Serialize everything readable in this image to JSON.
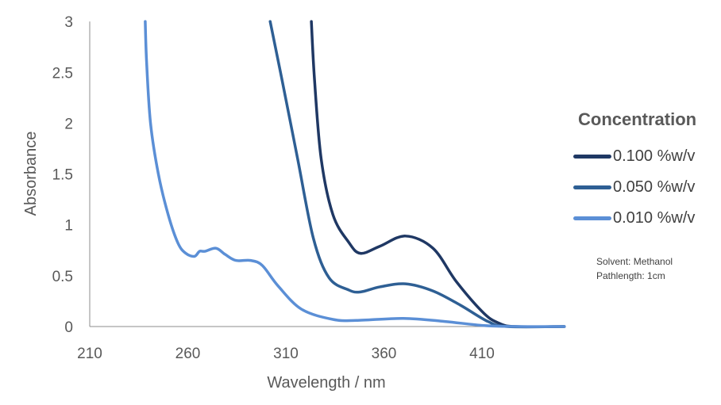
{
  "chart_data": {
    "type": "line",
    "title": "",
    "xlabel": "Wavelength / nm",
    "ylabel": "Absorbance",
    "xlim": [
      210,
      452
    ],
    "ylim": [
      0,
      3
    ],
    "xticks": [
      "210",
      "260",
      "310",
      "360",
      "410"
    ],
    "yticks": [
      "0",
      "0.5",
      "1",
      "1.5",
      "2",
      "2.5",
      "3"
    ],
    "grid": false,
    "legend": {
      "title": "Concentration",
      "placement": "right"
    },
    "annotations": [
      "Solvent: Methanol",
      "Pathlength: 1cm"
    ],
    "series": [
      {
        "name": "0.100 %w/v",
        "color": "#1f3864",
        "x": [
          323,
          324.6,
          328,
          334,
          342,
          348,
          358,
          371,
          385,
          397,
          411,
          419,
          427,
          452
        ],
        "y": [
          3.0,
          2.43,
          1.65,
          1.1,
          0.83,
          0.72,
          0.79,
          0.89,
          0.77,
          0.44,
          0.13,
          0.03,
          0.0,
          0.0
        ]
      },
      {
        "name": "0.050 %w/v",
        "color": "#2e5f94",
        "x": [
          302,
          308,
          316,
          324,
          332,
          342,
          348,
          358,
          371,
          385,
          399,
          413,
          423,
          452
        ],
        "y": [
          3.0,
          2.43,
          1.65,
          0.87,
          0.48,
          0.36,
          0.34,
          0.39,
          0.42,
          0.35,
          0.21,
          0.05,
          0.0,
          0.0
        ]
      },
      {
        "name": "0.010 %w/v",
        "color": "#5b8fd6",
        "x": [
          238.3,
          239,
          241,
          245,
          250,
          255,
          259,
          263.4,
          266,
          268.7,
          274.4,
          279,
          284.5,
          292,
          298,
          306,
          318,
          334,
          346,
          370,
          391,
          411,
          430,
          452
        ],
        "y": [
          3.0,
          2.6,
          2.0,
          1.5,
          1.1,
          0.82,
          0.72,
          0.69,
          0.74,
          0.74,
          0.77,
          0.71,
          0.65,
          0.65,
          0.6,
          0.4,
          0.17,
          0.07,
          0.06,
          0.08,
          0.05,
          0.01,
          0.0,
          0.0
        ]
      }
    ]
  }
}
